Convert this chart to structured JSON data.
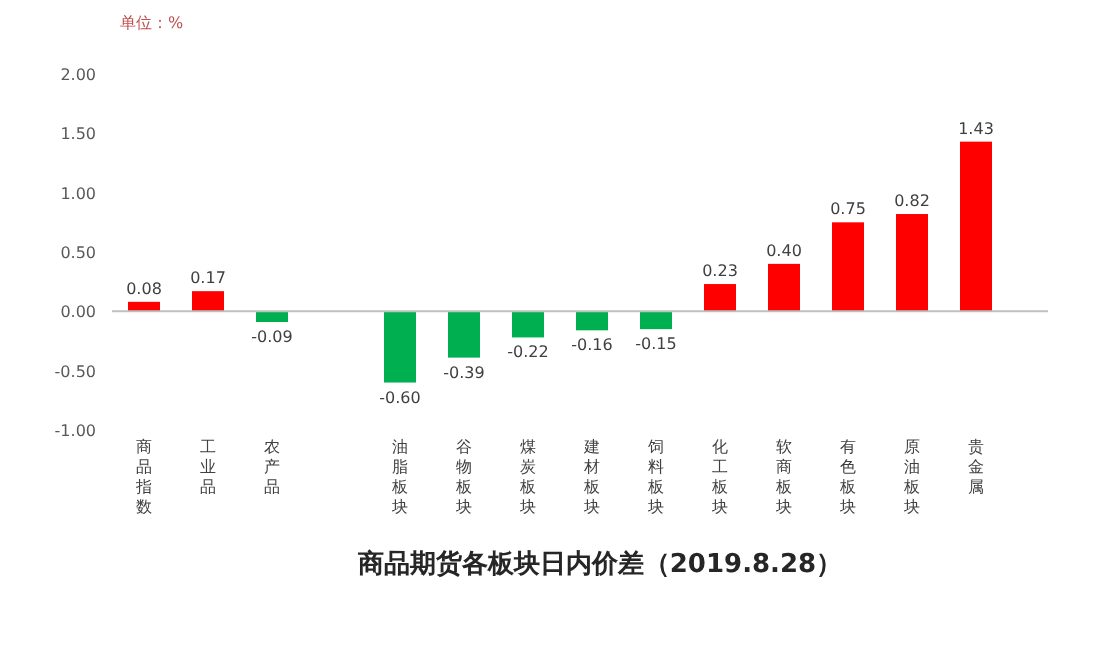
{
  "chart_data": {
    "type": "bar",
    "title": "商品期货各板块日内价差（2019.8.28）",
    "ylabel": "单位：%",
    "categories": [
      "商品指数",
      "工业品",
      "农产品",
      null,
      "油脂板块",
      "谷物板块",
      "煤炭板块",
      "建材板块",
      "饲料板块",
      "化工板块",
      "软商板块",
      "有色板块",
      "原油板块",
      "贵金属"
    ],
    "values": [
      0.08,
      0.17,
      -0.09,
      null,
      -0.6,
      -0.39,
      -0.22,
      -0.16,
      -0.15,
      0.23,
      0.4,
      0.75,
      0.82,
      1.43
    ],
    "colors": [
      "#ff0000",
      "#ff0000",
      "#00b050",
      null,
      "#00b050",
      "#00b050",
      "#00b050",
      "#00b050",
      "#00b050",
      "#ff0000",
      "#ff0000",
      "#ff0000",
      "#ff0000",
      "#ff0000"
    ],
    "ylim": [
      -1,
      2
    ],
    "yticks": [
      {
        "value": -1,
        "label": "-1.00"
      },
      {
        "value": -0.5,
        "label": "-0.50"
      },
      {
        "value": 0,
        "label": "0.00"
      },
      {
        "value": 0.5,
        "label": "0.50"
      },
      {
        "value": 1,
        "label": "1.00"
      },
      {
        "value": 1.5,
        "label": "1.50"
      },
      {
        "value": 2,
        "label": "2.00"
      }
    ],
    "value_labels": [
      "0.08",
      "0.17",
      "-0.09",
      null,
      "-0.60",
      "-0.39",
      "-0.22",
      "-0.16",
      "-0.15",
      "0.23",
      "0.40",
      "0.75",
      "0.82",
      "1.43"
    ]
  }
}
